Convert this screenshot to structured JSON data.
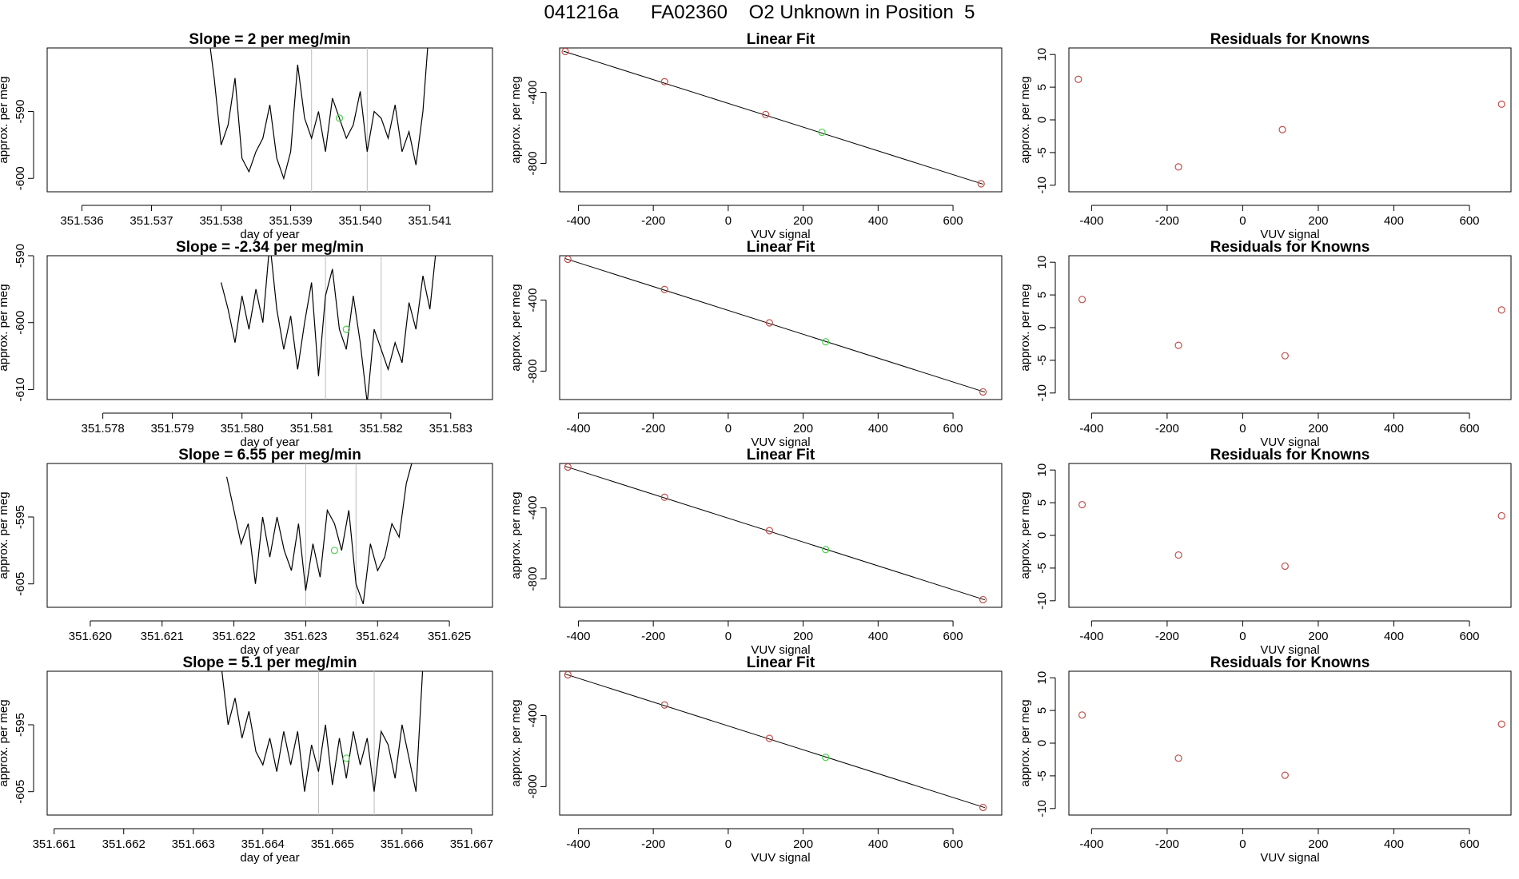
{
  "figure": {
    "title": "041216a      FA02360    O2 Unknown in Position  5"
  },
  "colors": {
    "line": "#000000",
    "known_point": "#c0504d",
    "unknown_point": "#4fd14f",
    "marker_line": "#bdbdbd"
  },
  "chart_data": [
    {
      "row": 1,
      "panel": "time_series",
      "type": "line",
      "title": "Slope =  2  per meg/min",
      "xlabel": "day of year",
      "ylabel": "approx. per meg",
      "xlim": [
        351.5355,
        351.5419
      ],
      "ylim": [
        -602,
        -580.5
      ],
      "xticks": [
        "351.536",
        "351.537",
        "351.538",
        "351.539",
        "351.540",
        "351.541"
      ],
      "yticks": [
        "-590",
        "-600"
      ],
      "yticks_values": [
        -590,
        -600
      ],
      "markers": [
        351.5393,
        351.5401
      ],
      "unknown_point": [
        351.5397,
        -591
      ],
      "x": [
        351.5378,
        351.5379,
        351.538,
        351.5381,
        351.5382,
        351.5383,
        351.5384,
        351.5385,
        351.5386,
        351.5387,
        351.5388,
        351.5389,
        351.539,
        351.5391,
        351.5392,
        351.5393,
        351.5394,
        351.5395,
        351.5396,
        351.5397,
        351.5398,
        351.5399,
        351.54,
        351.5401,
        351.5402,
        351.5403,
        351.5404,
        351.5405,
        351.5406,
        351.5407,
        351.5408,
        351.5409,
        351.541
      ],
      "y": [
        -577,
        -585,
        -595,
        -592,
        -585,
        -597,
        -599,
        -596,
        -594,
        -589,
        -597,
        -600,
        -596,
        -583,
        -591,
        -594,
        -590,
        -596,
        -588,
        -591,
        -594,
        -592,
        -587,
        -596,
        -590,
        -591,
        -594,
        -589,
        -596,
        -593,
        -598,
        -590,
        -576
      ]
    },
    {
      "row": 1,
      "panel": "linear_fit",
      "type": "scatter",
      "title": "Linear Fit",
      "xlabel": "VUV signal",
      "ylabel": "approx. per meg",
      "xlim": [
        -450,
        730
      ],
      "ylim": [
        -960,
        -150
      ],
      "xticks": [
        "-400",
        "-200",
        "0",
        "200",
        "400",
        "600"
      ],
      "xticks_values": [
        -400,
        -200,
        0,
        200,
        400,
        600
      ],
      "yticks": [
        "-400",
        "-800"
      ],
      "yticks_values": [
        -400,
        -800
      ],
      "knowns": {
        "x": [
          -435,
          -170,
          100,
          675
        ],
        "y": [
          -170,
          -340,
          -525,
          -915
        ]
      },
      "unknown": [
        250,
        -625
      ],
      "fit_line": [
        [
          -440,
          -168
        ],
        [
          680,
          -917
        ]
      ]
    },
    {
      "row": 1,
      "panel": "residuals",
      "type": "scatter",
      "title": "Residuals for Knowns",
      "xlabel": "VUV signal",
      "ylabel": "approx. per meg",
      "xlim": [
        -460,
        710
      ],
      "ylim": [
        -11,
        11
      ],
      "xticks": [
        "-400",
        "-200",
        "0",
        "200",
        "400",
        "600"
      ],
      "xticks_values": [
        -400,
        -200,
        0,
        200,
        400,
        600
      ],
      "yticks": [
        "10",
        "5",
        "0",
        "-5",
        "-10"
      ],
      "yticks_values": [
        10,
        5,
        0,
        -5,
        -10
      ],
      "x": [
        -435,
        -170,
        105,
        685
      ],
      "y": [
        6.2,
        -7.2,
        -1.5,
        2.4
      ]
    },
    {
      "row": 2,
      "panel": "time_series",
      "type": "line",
      "title": "Slope =  -2.34  per meg/min",
      "xlabel": "day of year",
      "ylabel": "approx. per meg",
      "xlim": [
        351.5772,
        351.5836
      ],
      "ylim": [
        -611.5,
        -590
      ],
      "xticks": [
        "351.578",
        "351.579",
        "351.580",
        "351.581",
        "351.582",
        "351.583"
      ],
      "yticks": [
        "-590",
        "-600",
        "-610"
      ],
      "yticks_values": [
        -590,
        -600,
        -610
      ],
      "markers": [
        351.5812,
        351.582
      ],
      "unknown_point": [
        351.5815,
        -601
      ],
      "x": [
        351.5797,
        351.5798,
        351.5799,
        351.58,
        351.5801,
        351.5802,
        351.5803,
        351.5804,
        351.5805,
        351.5806,
        351.5807,
        351.5808,
        351.5809,
        351.581,
        351.5811,
        351.5812,
        351.5813,
        351.5814,
        351.5815,
        351.5816,
        351.5817,
        351.5818,
        351.5819,
        351.582,
        351.5821,
        351.5822,
        351.5823,
        351.5824,
        351.5825,
        351.5826,
        351.5827,
        351.5828
      ],
      "y": [
        -594,
        -598,
        -603,
        -596,
        -601,
        -595,
        -600,
        -588,
        -598,
        -604,
        -599,
        -607,
        -600,
        -594,
        -608,
        -596,
        -592,
        -601,
        -604,
        -596,
        -603,
        -612,
        -601,
        -604,
        -607,
        -603,
        -606,
        -597,
        -601,
        -593,
        -598,
        -588
      ]
    },
    {
      "row": 2,
      "panel": "linear_fit",
      "type": "scatter",
      "title": "Linear Fit",
      "xlabel": "VUV signal",
      "ylabel": "approx. per meg",
      "xlim": [
        -450,
        730
      ],
      "ylim": [
        -960,
        -150
      ],
      "xticks": [
        "-400",
        "-200",
        "0",
        "200",
        "400",
        "600"
      ],
      "xticks_values": [
        -400,
        -200,
        0,
        200,
        400,
        600
      ],
      "yticks": [
        "-400",
        "-800"
      ],
      "yticks_values": [
        -400,
        -800
      ],
      "knowns": {
        "x": [
          -428,
          -170,
          110,
          680
        ],
        "y": [
          -170,
          -340,
          -528,
          -917
        ]
      },
      "unknown": [
        260,
        -635
      ],
      "fit_line": [
        [
          -435,
          -166
        ],
        [
          685,
          -918
        ]
      ]
    },
    {
      "row": 2,
      "panel": "residuals",
      "type": "scatter",
      "title": "Residuals for Knowns",
      "xlabel": "VUV signal",
      "ylabel": "approx. per meg",
      "xlim": [
        -460,
        710
      ],
      "ylim": [
        -11,
        11
      ],
      "xticks": [
        "-400",
        "-200",
        "0",
        "200",
        "400",
        "600"
      ],
      "xticks_values": [
        -400,
        -200,
        0,
        200,
        400,
        600
      ],
      "yticks": [
        "10",
        "5",
        "0",
        "-5",
        "-10"
      ],
      "yticks_values": [
        10,
        5,
        0,
        -5,
        -10
      ],
      "x": [
        -425,
        -170,
        112,
        685
      ],
      "y": [
        4.3,
        -2.7,
        -4.3,
        2.7
      ]
    },
    {
      "row": 3,
      "panel": "time_series",
      "type": "line",
      "title": "Slope =  6.55  per meg/min",
      "xlabel": "day of year",
      "ylabel": "approx. per meg",
      "xlim": [
        351.6194,
        351.6256
      ],
      "ylim": [
        -608.5,
        -587
      ],
      "xticks": [
        "351.620",
        "351.621",
        "351.622",
        "351.623",
        "351.624",
        "351.625"
      ],
      "yticks": [
        "-595",
        "-605"
      ],
      "yticks_values": [
        -595,
        -605
      ],
      "markers": [
        351.623,
        351.6237
      ],
      "unknown_point": [
        351.6234,
        -600
      ],
      "x": [
        351.6219,
        351.622,
        351.6221,
        351.6222,
        351.6223,
        351.6224,
        351.6225,
        351.6226,
        351.6227,
        351.6228,
        351.6229,
        351.623,
        351.6231,
        351.6232,
        351.6233,
        351.6234,
        351.6235,
        351.6236,
        351.6237,
        351.6238,
        351.6239,
        351.624,
        351.6241,
        351.6242,
        351.6243,
        351.6244,
        351.6245
      ],
      "y": [
        -589,
        -594,
        -599,
        -596,
        -605,
        -595,
        -601,
        -595,
        -600,
        -603,
        -596,
        -606,
        -599,
        -604,
        -594,
        -596,
        -600,
        -594,
        -605,
        -608,
        -599,
        -603,
        -601,
        -596,
        -598,
        -590,
        -586
      ]
    },
    {
      "row": 3,
      "panel": "linear_fit",
      "type": "scatter",
      "title": "Linear Fit",
      "xlabel": "VUV signal",
      "ylabel": "approx. per meg",
      "xlim": [
        -450,
        730
      ],
      "ylim": [
        -960,
        -150
      ],
      "xticks": [
        "-400",
        "-200",
        "0",
        "200",
        "400",
        "600"
      ],
      "xticks_values": [
        -400,
        -200,
        0,
        200,
        400,
        600
      ],
      "yticks": [
        "-400",
        "-800"
      ],
      "yticks_values": [
        -400,
        -800
      ],
      "knowns": {
        "x": [
          -428,
          -170,
          110,
          680
        ],
        "y": [
          -170,
          -340,
          -528,
          -917
        ]
      },
      "unknown": [
        260,
        -635
      ],
      "fit_line": [
        [
          -435,
          -166
        ],
        [
          685,
          -918
        ]
      ]
    },
    {
      "row": 3,
      "panel": "residuals",
      "type": "scatter",
      "title": "Residuals for Knowns",
      "xlabel": "VUV signal",
      "ylabel": "approx. per meg",
      "xlim": [
        -460,
        710
      ],
      "ylim": [
        -11,
        11
      ],
      "xticks": [
        "-400",
        "-200",
        "0",
        "200",
        "400",
        "600"
      ],
      "xticks_values": [
        -400,
        -200,
        0,
        200,
        400,
        600
      ],
      "yticks": [
        "10",
        "5",
        "0",
        "-5",
        "-10"
      ],
      "yticks_values": [
        10,
        5,
        0,
        -5,
        -10
      ],
      "x": [
        -425,
        -170,
        112,
        685
      ],
      "y": [
        4.7,
        -3.0,
        -4.7,
        3.0
      ]
    },
    {
      "row": 4,
      "panel": "time_series",
      "type": "line",
      "title": "Slope =  5.1  per meg/min",
      "xlabel": "day of year",
      "ylabel": "approx. per meg",
      "xlim": [
        351.6609,
        351.6673
      ],
      "ylim": [
        -608.5,
        -587
      ],
      "xticks": [
        "351.661",
        "351.662",
        "351.663",
        "351.664",
        "351.665",
        "351.666",
        "351.667"
      ],
      "yticks": [
        "-595",
        "-605"
      ],
      "yticks_values": [
        -595,
        -605
      ],
      "markers": [
        351.6648,
        351.6656
      ],
      "unknown_point": [
        351.6652,
        -600
      ],
      "x": [
        351.6634,
        351.6635,
        351.6636,
        351.6637,
        351.6638,
        351.6639,
        351.664,
        351.6641,
        351.6642,
        351.6643,
        351.6644,
        351.6645,
        351.6646,
        351.6647,
        351.6648,
        351.6649,
        351.665,
        351.6651,
        351.6652,
        351.6653,
        351.6654,
        351.6655,
        351.6656,
        351.6657,
        351.6658,
        351.6659,
        351.666,
        351.6661,
        351.6662,
        351.6663
      ],
      "y": [
        -586,
        -595,
        -591,
        -597,
        -593,
        -599,
        -601,
        -597,
        -602,
        -596,
        -601,
        -596,
        -605,
        -598,
        -602,
        -595,
        -604,
        -597,
        -603,
        -596,
        -601,
        -597,
        -605,
        -596,
        -598,
        -603,
        -595,
        -600,
        -605,
        -586
      ]
    },
    {
      "row": 4,
      "panel": "linear_fit",
      "type": "scatter",
      "title": "Linear Fit",
      "xlabel": "VUV signal",
      "ylabel": "approx. per meg",
      "xlim": [
        -450,
        730
      ],
      "ylim": [
        -960,
        -150
      ],
      "xticks": [
        "-400",
        "-200",
        "0",
        "200",
        "400",
        "600"
      ],
      "xticks_values": [
        -400,
        -200,
        0,
        200,
        400,
        600
      ],
      "yticks": [
        "-400",
        "-800"
      ],
      "yticks_values": [
        -400,
        -800
      ],
      "knowns": {
        "x": [
          -428,
          -170,
          110,
          680
        ],
        "y": [
          -170,
          -340,
          -528,
          -917
        ]
      },
      "unknown": [
        260,
        -635
      ],
      "fit_line": [
        [
          -435,
          -166
        ],
        [
          685,
          -918
        ]
      ]
    },
    {
      "row": 4,
      "panel": "residuals",
      "type": "scatter",
      "title": "Residuals for Knowns",
      "xlabel": "VUV signal",
      "ylabel": "approx. per meg",
      "xlim": [
        -460,
        710
      ],
      "ylim": [
        -11,
        11
      ],
      "xticks": [
        "-400",
        "-200",
        "0",
        "200",
        "400",
        "600"
      ],
      "xticks_values": [
        -400,
        -200,
        0,
        200,
        400,
        600
      ],
      "yticks": [
        "10",
        "5",
        "0",
        "-5",
        "-10"
      ],
      "yticks_values": [
        10,
        5,
        0,
        -5,
        -10
      ],
      "x": [
        -425,
        -170,
        112,
        685
      ],
      "y": [
        4.3,
        -2.3,
        -4.9,
        2.9
      ]
    }
  ]
}
